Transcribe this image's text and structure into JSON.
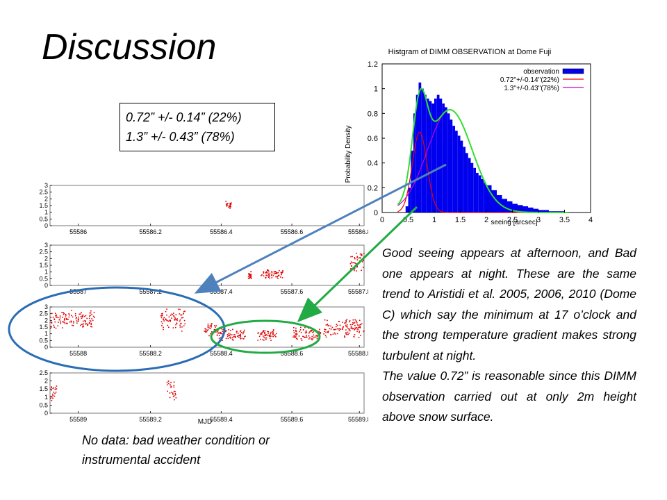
{
  "slide": {
    "title": "Discussion",
    "fit_box": {
      "line1": "0.72” +/- 0.14” (22%)",
      "line2": "1.3” +/- 0.43” (78%)"
    },
    "paragraph1": "Good seeing appears at afternoon, and Bad one appears at night. These are the same trend to Aristidi et al. 2005, 2006, 2010 (Dome C) which say the minimum at 17 o’clock and the strong temperature gradient makes strong turbulent at night.",
    "paragraph2": "The value 0.72” is reasonable since this DIMM observation carried out at only 2m height above snow surface.",
    "nodata_note": "No data: bad weather condition or instrumental accident"
  },
  "chart_data": [
    {
      "type": "bar",
      "title": "Histgram of DIMM OBSERVATION at Dome Fuji",
      "xlabel": "seeing [arcsec]",
      "ylabel": "Probability Density",
      "xlim": [
        0,
        4
      ],
      "ylim": [
        0,
        1.2
      ],
      "xticks": [
        "0",
        "0.5",
        "1",
        "1.5",
        "2",
        "2.5",
        "3",
        "3.5",
        "4"
      ],
      "yticks": [
        "0",
        "0.2",
        "0.4",
        "0.6",
        "0.8",
        "1",
        "1.2"
      ],
      "legend": [
        "observation",
        "0.72''+/-0.14''(22%)",
        "1.3''+/-0.43''(78%)"
      ],
      "legend_position": "top-right",
      "series_colors": {
        "observation": "#0000ee",
        "fit1": "#ee0000",
        "fit2": "#cc00cc",
        "total": "#33dd33"
      },
      "x": [
        0.35,
        0.45,
        0.5,
        0.55,
        0.6,
        0.65,
        0.7,
        0.75,
        0.8,
        0.85,
        0.9,
        0.95,
        1.0,
        1.05,
        1.1,
        1.15,
        1.2,
        1.25,
        1.3,
        1.35,
        1.4,
        1.45,
        1.5,
        1.55,
        1.6,
        1.65,
        1.7,
        1.75,
        1.8,
        1.85,
        1.9,
        1.95,
        2.0,
        2.1,
        2.2,
        2.3,
        2.4,
        2.5,
        2.6,
        2.7,
        2.8,
        2.9,
        3.0,
        3.2,
        3.4
      ],
      "values": [
        0.0,
        0.05,
        0.2,
        0.5,
        0.8,
        0.95,
        1.05,
        1.0,
        0.95,
        0.92,
        0.9,
        0.88,
        0.92,
        0.95,
        0.92,
        0.88,
        0.85,
        0.8,
        0.75,
        0.7,
        0.66,
        0.62,
        0.58,
        0.53,
        0.48,
        0.44,
        0.4,
        0.36,
        0.32,
        0.3,
        0.27,
        0.24,
        0.22,
        0.18,
        0.14,
        0.11,
        0.09,
        0.07,
        0.06,
        0.05,
        0.04,
        0.03,
        0.02,
        0.01,
        0.01
      ]
    },
    {
      "type": "scatter",
      "xlabel": "MJD",
      "panels": [
        {
          "xticks": [
            "55586",
            "55586.2",
            "55586.4",
            "55586.6",
            "55586.8"
          ],
          "ylim": [
            0,
            3
          ],
          "yticks": [
            "0",
            "0.5",
            "1",
            "1.5",
            "2",
            "2.5",
            "3"
          ],
          "clusters": [
            {
              "x0": 0.555,
              "x1": 0.575,
              "y0": 1.2,
              "y1": 2.0
            }
          ]
        },
        {
          "xticks": [
            "55587",
            "55587.2",
            "55587.4",
            "55587.6",
            "55587.8"
          ],
          "ylim": [
            0,
            3
          ],
          "yticks": [
            "0",
            "0.5",
            "1",
            "1.5",
            "2",
            "2.5",
            "3"
          ],
          "clusters": [
            {
              "x0": 0.63,
              "x1": 0.64,
              "y0": 0.3,
              "y1": 1.2
            },
            {
              "x0": 0.67,
              "x1": 0.74,
              "y0": 0.5,
              "y1": 1.3
            },
            {
              "x0": 0.955,
              "x1": 1.0,
              "y0": 1.0,
              "y1": 2.8
            }
          ]
        },
        {
          "xticks": [
            "55588",
            "55588.2",
            "55588.4",
            "55588.6",
            "55588.8"
          ],
          "ylim": [
            0,
            3
          ],
          "yticks": [
            "0",
            "0.5",
            "1",
            "1.5",
            "2",
            "2.5",
            "3"
          ],
          "clusters": [
            {
              "x0": 0.0,
              "x1": 0.14,
              "y0": 1.4,
              "y1": 2.8
            },
            {
              "x0": 0.35,
              "x1": 0.43,
              "y0": 1.2,
              "y1": 3.0
            },
            {
              "x0": 0.49,
              "x1": 0.53,
              "y0": 0.8,
              "y1": 1.9
            },
            {
              "x0": 0.53,
              "x1": 0.62,
              "y0": 0.5,
              "y1": 1.5
            },
            {
              "x0": 0.66,
              "x1": 0.72,
              "y0": 0.5,
              "y1": 1.4
            },
            {
              "x0": 0.77,
              "x1": 0.86,
              "y0": 0.5,
              "y1": 1.6
            },
            {
              "x0": 0.87,
              "x1": 1.0,
              "y0": 0.7,
              "y1": 2.2
            }
          ]
        },
        {
          "xticks": [
            "55589",
            "55589.2",
            "55589.4",
            "55589.6",
            "55589.8"
          ],
          "ylim": [
            0,
            2.5
          ],
          "yticks": [
            "0",
            "0.5",
            "1",
            "1.5",
            "2",
            "2.5"
          ],
          "clusters": [
            {
              "x0": 0.0,
              "x1": 0.02,
              "y0": 0.8,
              "y1": 1.8
            },
            {
              "x0": 0.37,
              "x1": 0.4,
              "y0": 0.8,
              "y1": 2.3
            }
          ]
        }
      ]
    }
  ]
}
